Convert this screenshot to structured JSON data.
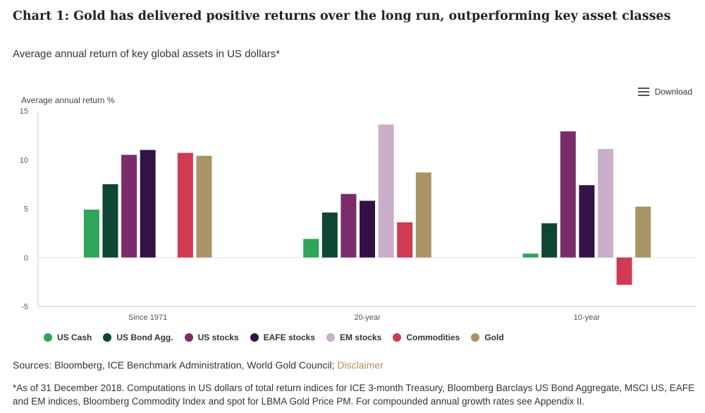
{
  "header": {
    "title": "Chart 1: Gold has delivered positive returns over the long run, outperforming key asset classes",
    "subtitle": "Average annual return of key global assets in US dollars*"
  },
  "toolbar": {
    "download_label": "Download",
    "download_icon": "menu-icon"
  },
  "chart_data": {
    "type": "bar",
    "ylabel": "Average annual return %",
    "ylim": [
      -5,
      15
    ],
    "yticks": [
      -5,
      0,
      5,
      10,
      15
    ],
    "grid": false,
    "legend_position": "bottom-left",
    "categories": [
      "Since 1971",
      "20-year",
      "10-year"
    ],
    "series": [
      {
        "name": "US Cash",
        "color": "#2ea55a",
        "values": [
          4.9,
          1.9,
          0.4
        ]
      },
      {
        "name": "US Bond Agg.",
        "color": "#0d4633",
        "values": [
          7.5,
          4.6,
          3.5
        ]
      },
      {
        "name": "US stocks",
        "color": "#7b2d6b",
        "values": [
          10.5,
          6.5,
          12.9
        ]
      },
      {
        "name": "EAFE stocks",
        "color": "#341247",
        "values": [
          11.0,
          5.8,
          7.4
        ]
      },
      {
        "name": "EM stocks",
        "color": "#cbaec9",
        "values": [
          null,
          13.6,
          11.1
        ]
      },
      {
        "name": "Commodities",
        "color": "#cf3b52",
        "values": [
          10.7,
          3.6,
          -2.8
        ]
      },
      {
        "name": "Gold",
        "color": "#a89465",
        "values": [
          10.4,
          8.7,
          5.2
        ]
      }
    ]
  },
  "footer": {
    "sources_prefix": "Sources: Bloomberg, ICE Benchmark Administration, World Gold Council; ",
    "disclaimer_link": "Disclaimer",
    "footnote": "*As of 31 December 2018. Computations in US dollars of total return indices for ICE 3-month Treasury, Bloomberg Barclays US Bond Aggregate, MSCI US, EAFE and EM indices, Bloomberg Commodity Index and spot for LBMA Gold Price PM. For compounded annual growth rates see Appendix II."
  }
}
